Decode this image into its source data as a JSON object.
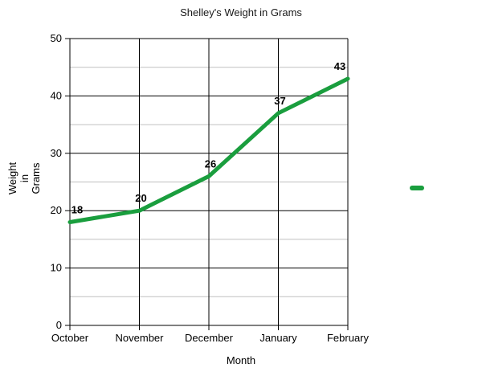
{
  "chart_data": {
    "type": "line",
    "title": "Shelley's Weight in Grams",
    "xlabel": "Month",
    "ylabel": "Weight in Grams",
    "categories": [
      "October",
      "November",
      "December",
      "January",
      "February"
    ],
    "values": [
      18,
      20,
      26,
      37,
      43
    ],
    "ylim": [
      0,
      50
    ],
    "y_ticks": [
      0,
      10,
      20,
      30,
      40,
      50
    ],
    "y_minor_ticks": [
      5,
      15,
      25,
      35,
      45
    ],
    "grid": true,
    "legend_position": "right",
    "colors": {
      "line": "#1a9e3e",
      "major_grid": "#000000",
      "minor_grid": "#c0c0c0",
      "text": "#000000",
      "background": "#ffffff"
    }
  }
}
